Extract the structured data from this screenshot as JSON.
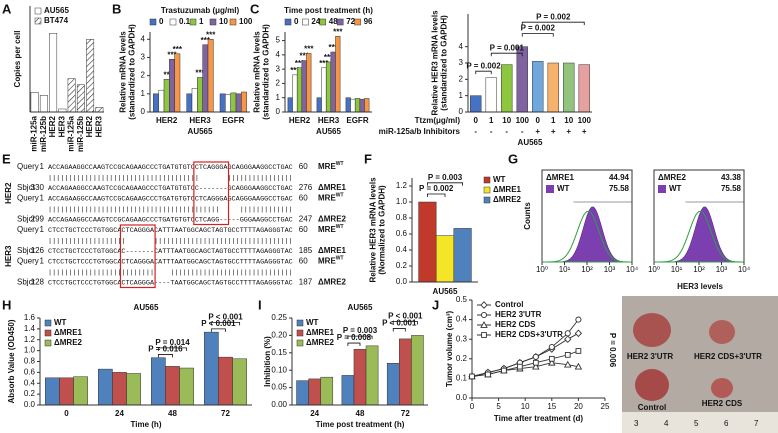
{
  "panels": [
    "A",
    "B",
    "C",
    "E",
    "F",
    "G",
    "H",
    "I",
    "J"
  ],
  "chart_data": [
    {
      "type": "bar",
      "ylabel": "Copies per cell",
      "categories": [
        "miR-125a",
        "miR-125b",
        "HER2",
        "HER3",
        "miR-125a",
        "miR-125b",
        "HER2",
        "HER3"
      ],
      "series": [
        {
          "name": "AU565",
          "color": "#ffffff",
          "values": [
            13,
            11,
            52,
            2,
            null,
            null,
            null,
            null
          ]
        },
        {
          "name": "BT474",
          "color": "#ffffff",
          "hatch": true,
          "values": [
            null,
            null,
            null,
            null,
            22,
            18,
            48,
            3
          ]
        }
      ],
      "ylim": [
        0,
        70
      ],
      "legend": "top-left"
    },
    {
      "type": "bar",
      "title": "Trastuzumab (μg/ml)",
      "ylabel": [
        "Relative mRNA levels",
        "(standardized to GAPDH)"
      ],
      "xlabel": "AU565",
      "categories": [
        "HER2",
        "HER3",
        "EGFR"
      ],
      "series": [
        {
          "name": "0",
          "color": "#4472c4",
          "values": [
            1,
            1,
            1
          ]
        },
        {
          "name": "0.1",
          "color": "#ffffff",
          "values": [
            1.2,
            1.3,
            0.95
          ]
        },
        {
          "name": "1",
          "color": "#8dc63f",
          "values": [
            1.8,
            1.9,
            1.05
          ],
          "stars": [
            "**",
            "***",
            null
          ]
        },
        {
          "name": "10",
          "color": "#8064a2",
          "values": [
            2.9,
            3.7,
            1.0
          ],
          "stars": [
            "***",
            "***",
            null
          ]
        },
        {
          "name": "100",
          "color": "#f79646",
          "values": [
            3.2,
            4.0,
            1.1
          ],
          "stars": [
            "***",
            "***",
            null
          ]
        }
      ],
      "ylim": [
        0,
        4.4
      ],
      "yticks": [
        0,
        1,
        2,
        3,
        4
      ],
      "legend": "top-row"
    },
    {
      "type": "bar",
      "title": "Time post treatment (h)",
      "ylabel": [
        "Relative mRNA levels",
        "(standardized to GAPDH)"
      ],
      "xlabel": "AU565",
      "categories": [
        "HER2",
        "HER3",
        "EGFR"
      ],
      "series": [
        {
          "name": "0",
          "color": "#4472c4",
          "values": [
            1,
            1,
            1
          ]
        },
        {
          "name": "24",
          "color": "#ffffff",
          "values": [
            2.6,
            3.1,
            0.9
          ],
          "stars": [
            "***",
            "***",
            null
          ]
        },
        {
          "name": "48",
          "color": "#8dc63f",
          "values": [
            3.1,
            3.5,
            0.95
          ],
          "stars": [
            "***",
            "***",
            null
          ]
        },
        {
          "name": "72",
          "color": "#8064a2",
          "values": [
            3.6,
            4.2,
            0.9
          ],
          "stars": [
            "***",
            "***",
            null
          ]
        },
        {
          "name": "96",
          "color": "#f79646",
          "values": [
            4.1,
            5.3,
            0.95
          ],
          "stars": [
            "***",
            "***",
            null
          ]
        }
      ],
      "ylim": [
        0,
        5.6
      ],
      "yticks": [
        0,
        1,
        2,
        3,
        4,
        5
      ],
      "legend": "top-row"
    },
    {
      "type": "bar",
      "ylabel": [
        "Relative HER3 mRNA levels",
        "(standardized to GAPDH)"
      ],
      "xlabel": "AU565",
      "categories": [
        "0",
        "1",
        "10",
        "100",
        "0",
        "1",
        "10",
        "100"
      ],
      "row_labels": [
        "Ttzm(μg/ml)",
        "miR-125a/b Inhibitors"
      ],
      "inhibitors": [
        "-",
        "-",
        "-",
        "-",
        "+",
        "+",
        "+",
        "+"
      ],
      "series": [
        {
          "colors": [
            "#4472c4",
            "#ffffff",
            "#8dc63f",
            "#8064a2",
            "#6fa8dc",
            "#f6b26b",
            "#93c47d",
            "#e6a0a0"
          ],
          "values": [
            1,
            2.1,
            2.9,
            4.0,
            3.1,
            3.0,
            3.0,
            2.9
          ]
        }
      ],
      "annotations": [
        "P = 0.002",
        "P = 0.002",
        "P = 0.001",
        "P = 0.002"
      ],
      "ylim": [
        0,
        6
      ],
      "yticks": [
        0,
        1,
        2,
        3,
        4
      ]
    },
    {
      "type": "bar",
      "ylabel": [
        "Relative HER3 mRNA levels",
        "(Normalized to GAPDH)"
      ],
      "xlabel": "AU565",
      "categories": [
        null
      ],
      "series": [
        {
          "name": "WT",
          "color": "#c0392b",
          "values": [
            1.0
          ]
        },
        {
          "name": "ΔMRE1",
          "color": "#f4e526",
          "values": [
            0.58
          ]
        },
        {
          "name": "ΔMRE2",
          "color": "#4f81bd",
          "values": [
            0.67
          ]
        }
      ],
      "annotations": [
        "P = 0.003",
        "P = 0.002"
      ],
      "ylim": [
        0,
        1.3
      ],
      "yticks": [
        {
          "value": 0,
          "label": "0.0"
        },
        0.2,
        0.4,
        0.6,
        0.8,
        {
          "value": 1,
          "label": "1.0"
        },
        1.2
      ],
      "legend": "right"
    },
    {
      "type": "bar",
      "title": "AU565",
      "ylabel": "Absorb Value (OD450)",
      "xlabel": "Time (h)",
      "categories": [
        "0",
        "24",
        "48",
        "72"
      ],
      "series": [
        {
          "name": "WT",
          "color": "#4f81bd",
          "values": [
            0.5,
            0.66,
            0.87,
            1.34
          ]
        },
        {
          "name": "ΔMRE1",
          "color": "#c0504d",
          "values": [
            0.5,
            0.6,
            0.71,
            0.88
          ]
        },
        {
          "name": "ΔMRE2",
          "color": "#9bbb59",
          "values": [
            0.52,
            0.58,
            0.68,
            0.85
          ]
        }
      ],
      "annotations": [
        "P = 0.014",
        "P = 0.016",
        "P < 0.001",
        "P < 0.001"
      ],
      "ylim": [
        0,
        1.6
      ],
      "yticks": [
        {
          "value": 0,
          "label": "0.0"
        },
        0.2,
        0.4,
        0.6,
        0.8,
        {
          "value": 1,
          "label": "1.0"
        },
        1.2,
        1.4,
        1.6
      ],
      "legend": "top-left"
    },
    {
      "type": "bar",
      "title": "AU565",
      "ylabel": "Inhibition (%)",
      "xlabel": "Time post treatment (h)",
      "categories": [
        "24",
        "48",
        "72"
      ],
      "series": [
        {
          "name": "WT",
          "color": "#4f81bd",
          "values": [
            0.07,
            0.085,
            0.12
          ]
        },
        {
          "name": "ΔMRE1",
          "color": "#c0504d",
          "values": [
            0.075,
            0.16,
            0.19
          ]
        },
        {
          "name": "ΔMRE2",
          "color": "#9bbb59",
          "values": [
            0.08,
            0.17,
            0.2
          ]
        }
      ],
      "annotations": [
        "P = 0.008",
        "P = 0.003",
        "P < 0.001",
        "P < 0.001"
      ],
      "ylim": [
        0,
        0.25
      ],
      "yticks": [
        {
          "value": 0,
          "label": "0.00"
        },
        0.05,
        {
          "value": 0.1,
          "label": "0.10"
        },
        0.15,
        {
          "value": 0.2,
          "label": "0.20"
        },
        0.25
      ],
      "legend": "top-left"
    },
    {
      "type": "line",
      "ylabel": "Tumor volume (cm³)",
      "xlabel": "Time after treatment (d)",
      "x": [
        0,
        3,
        6,
        9,
        12,
        15,
        18,
        20
      ],
      "series": [
        {
          "name": "Control",
          "color": "#333333",
          "marker": "diamond",
          "values": [
            0.11,
            0.13,
            0.15,
            0.18,
            0.21,
            0.25,
            0.3,
            0.33
          ]
        },
        {
          "name": "HER2 3'UTR",
          "color": "#333333",
          "marker": "circle",
          "values": [
            0.11,
            0.13,
            0.15,
            0.18,
            0.21,
            0.26,
            0.33,
            0.4
          ]
        },
        {
          "name": "HER2 CDS",
          "color": "#333333",
          "marker": "triangle",
          "values": [
            0.11,
            0.12,
            0.14,
            0.15,
            0.16,
            0.18,
            0.17,
            0.16
          ]
        },
        {
          "name": "HER2 CDS+3'UTR",
          "color": "#333333",
          "marker": "square",
          "values": [
            0.11,
            0.12,
            0.14,
            0.16,
            0.18,
            0.2,
            0.22,
            0.24
          ]
        }
      ],
      "annotations": [
        "P = 0.006"
      ],
      "xlim": [
        0,
        25
      ],
      "xticks": [
        0,
        5,
        10,
        15,
        20,
        25
      ],
      "ylim": [
        0,
        0.5
      ],
      "yticks": [
        {
          "value": 0,
          "label": "0.0"
        },
        0.1,
        0.2,
        0.3,
        0.4,
        0.5
      ],
      "legend": "top-left"
    }
  ],
  "alignment": {
    "genes": [
      {
        "name": "HER2",
        "pairs": [
          {
            "query": {
              "label": "Query",
              "start": 1,
              "seq": "ACCAGAAGGCCAAGTCCGCAGAAGCCCTGATGTGTCCTCAGGGAGCAGGGAAGGCCTGAC",
              "end": 60,
              "tag": "MRE",
              "tag_sup": "WT"
            },
            "match": "|||||||||||||||||||||||||||||||||||||       ||||||||||||||||",
            "sbjct": {
              "label": "Sbjct",
              "start": 330,
              "seq": "ACCAGAAGGCCAAGTCCGCAGAAGCCCTGATGTGTCC-------GCAGGGAAGGCCTGAC",
              "end": 276,
              "tag": "ΔMRE1"
            }
          },
          {
            "query": {
              "label": "Query",
              "start": 1,
              "seq": "ACCAGAAGGCCAAGTCCGCAGAAGCCCTGATGTGTCCTCAGGGAGCAGGGAAGGCCTGAC",
              "end": 60,
              "tag": "MRE",
              "tag_sup": "WT"
            },
            "match": "||||||||||||||||||||||||||||||||||||||||||     |||||||||||||",
            "sbjct": {
              "label": "Sbjct",
              "start": 299,
              "seq": "ACCAGAAGGCCAAGTCCGCAGAAGCCCTGATGTGTCCTCAGG-----GGGAAGGCCTGAC",
              "end": 247,
              "tag": "ΔMRE2"
            }
          }
        ]
      },
      {
        "name": "HER3",
        "pairs": [
          {
            "query": {
              "label": "Query",
              "start": 1,
              "seq": "CTCCTGCTCCCTGTGGCACTCAGGGACATTTAATGGCAGCTAGTGCCTTTTAGAGGGTAC",
              "end": 60,
              "tag": "MRE",
              "tag_sup": "WT"
            },
            "match": "|||||||||||||||||||       ||||||||||||||||||||||||||||||||||",
            "sbjct": {
              "label": "Sbjct",
              "start": 126,
              "seq": "CTCCTGCTCCCTGTGGCAC-------CATTTAATGGCAGCTAGTGCCTTTTAGAGGGTAC",
              "end": 185,
              "tag": "ΔMRE1"
            }
          },
          {
            "query": {
              "label": "Query",
              "start": 1,
              "seq": "CTCCTGCTCCCTGTGGCACTCAGGGACATTTAATGGCAGCTAGTGCCTTTTAGAGGGTAC",
              "end": 60,
              "tag": "MRE",
              "tag_sup": "WT"
            },
            "match": "||||||||||||||||||||||||||    ||||||||||||||||||||||||||||||",
            "sbjct": {
              "label": "Sbjct",
              "start": 128,
              "seq": "CTCCTGCTCCCTGTGGCACTCAGGGA----TAATGGCAGCTAGTGCCTTTTAGAGGGTAC",
              "end": 187,
              "tag": "ΔMRE2"
            }
          }
        ]
      }
    ]
  },
  "flow": {
    "ylabel": "Counts",
    "xlabel": "HER3 levels",
    "xticks": [
      {
        "value": 1,
        "label": "10⁰"
      },
      {
        "value": 10,
        "label": "10¹"
      },
      {
        "value": 100,
        "label": "10²"
      },
      {
        "value": 1000,
        "label": "10³"
      },
      {
        "value": 10000,
        "label": "10⁴"
      }
    ],
    "plots": [
      {
        "gates": [
          {
            "name": "ΔMRE1",
            "value": 44.94
          },
          {
            "name": "WT",
            "value": 75.58
          }
        ]
      },
      {
        "gates": [
          {
            "name": "ΔMRE2",
            "value": 43.38
          },
          {
            "name": "WT",
            "value": 75.58
          }
        ]
      }
    ]
  },
  "photo": {
    "labels": [
      "HER2 3'UTR",
      "HER2 CDS+3'UTR",
      "Control",
      "HER2 CDS"
    ],
    "ruler": [
      "3",
      "4",
      "5",
      "6",
      "7"
    ]
  }
}
